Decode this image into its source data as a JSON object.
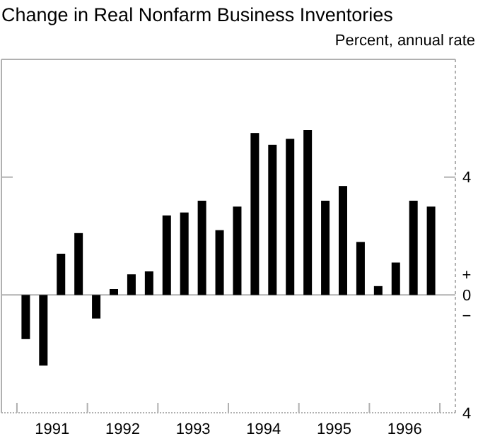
{
  "chart_data": {
    "type": "bar",
    "title": "Change in Real Nonfarm Business Inventories",
    "subtitle": "Percent, annual rate",
    "x": [
      1991.125,
      1991.375,
      1991.625,
      1991.875,
      1992.125,
      1992.375,
      1992.625,
      1992.875,
      1993.125,
      1993.375,
      1993.625,
      1993.875,
      1994.125,
      1994.375,
      1994.625,
      1994.875,
      1995.125,
      1995.375,
      1995.625,
      1995.875,
      1996.125,
      1996.375,
      1996.625,
      1996.875
    ],
    "values": [
      -1.5,
      -2.4,
      1.4,
      2.1,
      -0.8,
      0.2,
      0.7,
      0.8,
      2.7,
      2.8,
      3.2,
      2.2,
      3.0,
      5.5,
      5.1,
      5.3,
      5.6,
      3.2,
      3.7,
      1.8,
      0.3,
      1.1,
      3.2,
      3.0
    ],
    "color": "#000000",
    "xlim": [
      1990.78,
      1997.22
    ],
    "xticks": [
      {
        "value": 1991,
        "label": null
      },
      {
        "value": 1991.5,
        "label": "1991"
      },
      {
        "value": 1992,
        "label": null
      },
      {
        "value": 1992.5,
        "label": "1992"
      },
      {
        "value": 1993,
        "label": null
      },
      {
        "value": 1993.5,
        "label": "1993"
      },
      {
        "value": 1994,
        "label": null
      },
      {
        "value": 1994.5,
        "label": "1994"
      },
      {
        "value": 1995,
        "label": null
      },
      {
        "value": 1995.5,
        "label": "1995"
      },
      {
        "value": 1996,
        "label": null
      },
      {
        "value": 1996.5,
        "label": "1996"
      },
      {
        "value": 1997,
        "label": null
      }
    ],
    "ylim": [
      -4,
      8
    ],
    "yticks": [
      {
        "value": -4,
        "label": "4"
      },
      {
        "value": -0.7,
        "label": "−"
      },
      0,
      {
        "value": 0.7,
        "label": "+"
      },
      4
    ],
    "ref_lines": [
      {
        "axis": "y",
        "value": 0,
        "color": "#b0b0b0"
      }
    ]
  }
}
